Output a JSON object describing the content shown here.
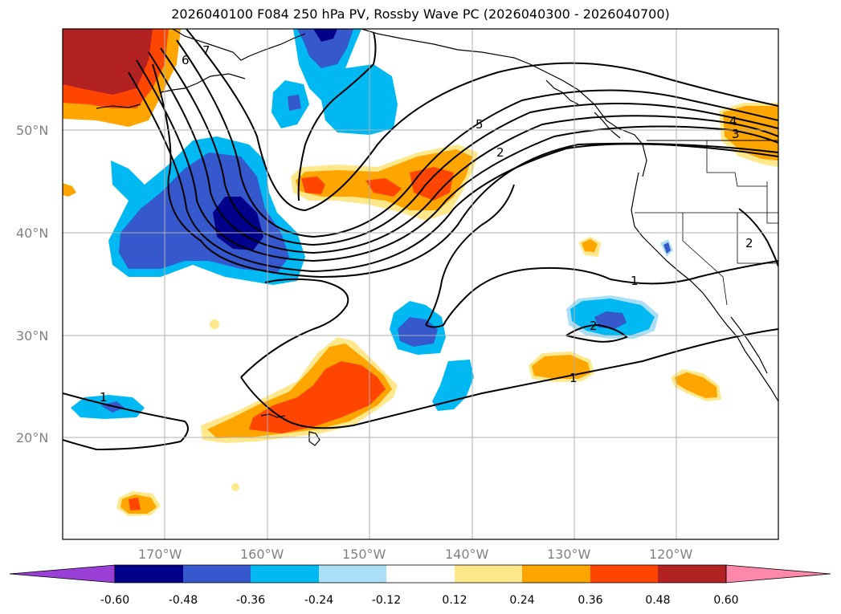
{
  "title": "2026040100 F084 250 hPa PV, Rossby Wave PC (2026040300 - 2026040700)",
  "latitude_labels": [
    "50°N",
    "40°N",
    "30°N",
    "20°N"
  ],
  "longitude_labels": [
    "170°W",
    "160°W",
    "150°W",
    "140°W",
    "130°W",
    "120°W"
  ],
  "contour_labels": [
    "6",
    "7",
    "5",
    "2",
    "1",
    "2",
    "1",
    "1",
    "4",
    "3",
    "2"
  ],
  "colorbar": {
    "colors": [
      "#9a3fd6",
      "#00008b",
      "#3558cc",
      "#00b9f2",
      "#abdff7",
      "#ffffff",
      "#ffe88c",
      "#ffa500",
      "#ff4500",
      "#b22222",
      "#ff88aa"
    ],
    "labels": [
      "-0.60",
      "-0.48",
      "-0.36",
      "-0.24",
      "-0.12",
      "0.12",
      "0.24",
      "0.36",
      "0.48",
      "0.60"
    ]
  },
  "colors": {
    "neg_dark": "#00008b",
    "neg_mid": "#3558cc",
    "neg_light": "#00b9f2",
    "neg_pale": "#abdff7",
    "pos_pale": "#ffe88c",
    "pos_light": "#ffa500",
    "pos_mid": "#ff4500",
    "pos_dark": "#b22222",
    "grid": "#b0b0b0"
  }
}
